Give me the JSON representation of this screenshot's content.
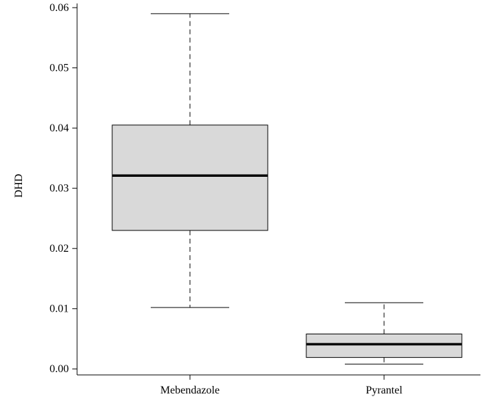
{
  "chart_data": {
    "type": "boxplot",
    "title": "",
    "xlabel": "",
    "ylabel": "DHD",
    "ylim": [
      -0.001,
      0.0607
    ],
    "yticks": [
      "0.00",
      "0.01",
      "0.02",
      "0.03",
      "0.04",
      "0.05",
      "0.06"
    ],
    "grid": false,
    "box_fill": "#d9d9d9",
    "categories": [
      "Mebendazole",
      "Pyrantel"
    ],
    "boxes": [
      {
        "name": "Mebendazole",
        "min": 0.0102,
        "q1": 0.023,
        "median": 0.0321,
        "q3": 0.0405,
        "max": 0.059
      },
      {
        "name": "Pyrantel",
        "min": 0.0008,
        "q1": 0.0019,
        "median": 0.0041,
        "q3": 0.0058,
        "max": 0.011
      }
    ]
  }
}
